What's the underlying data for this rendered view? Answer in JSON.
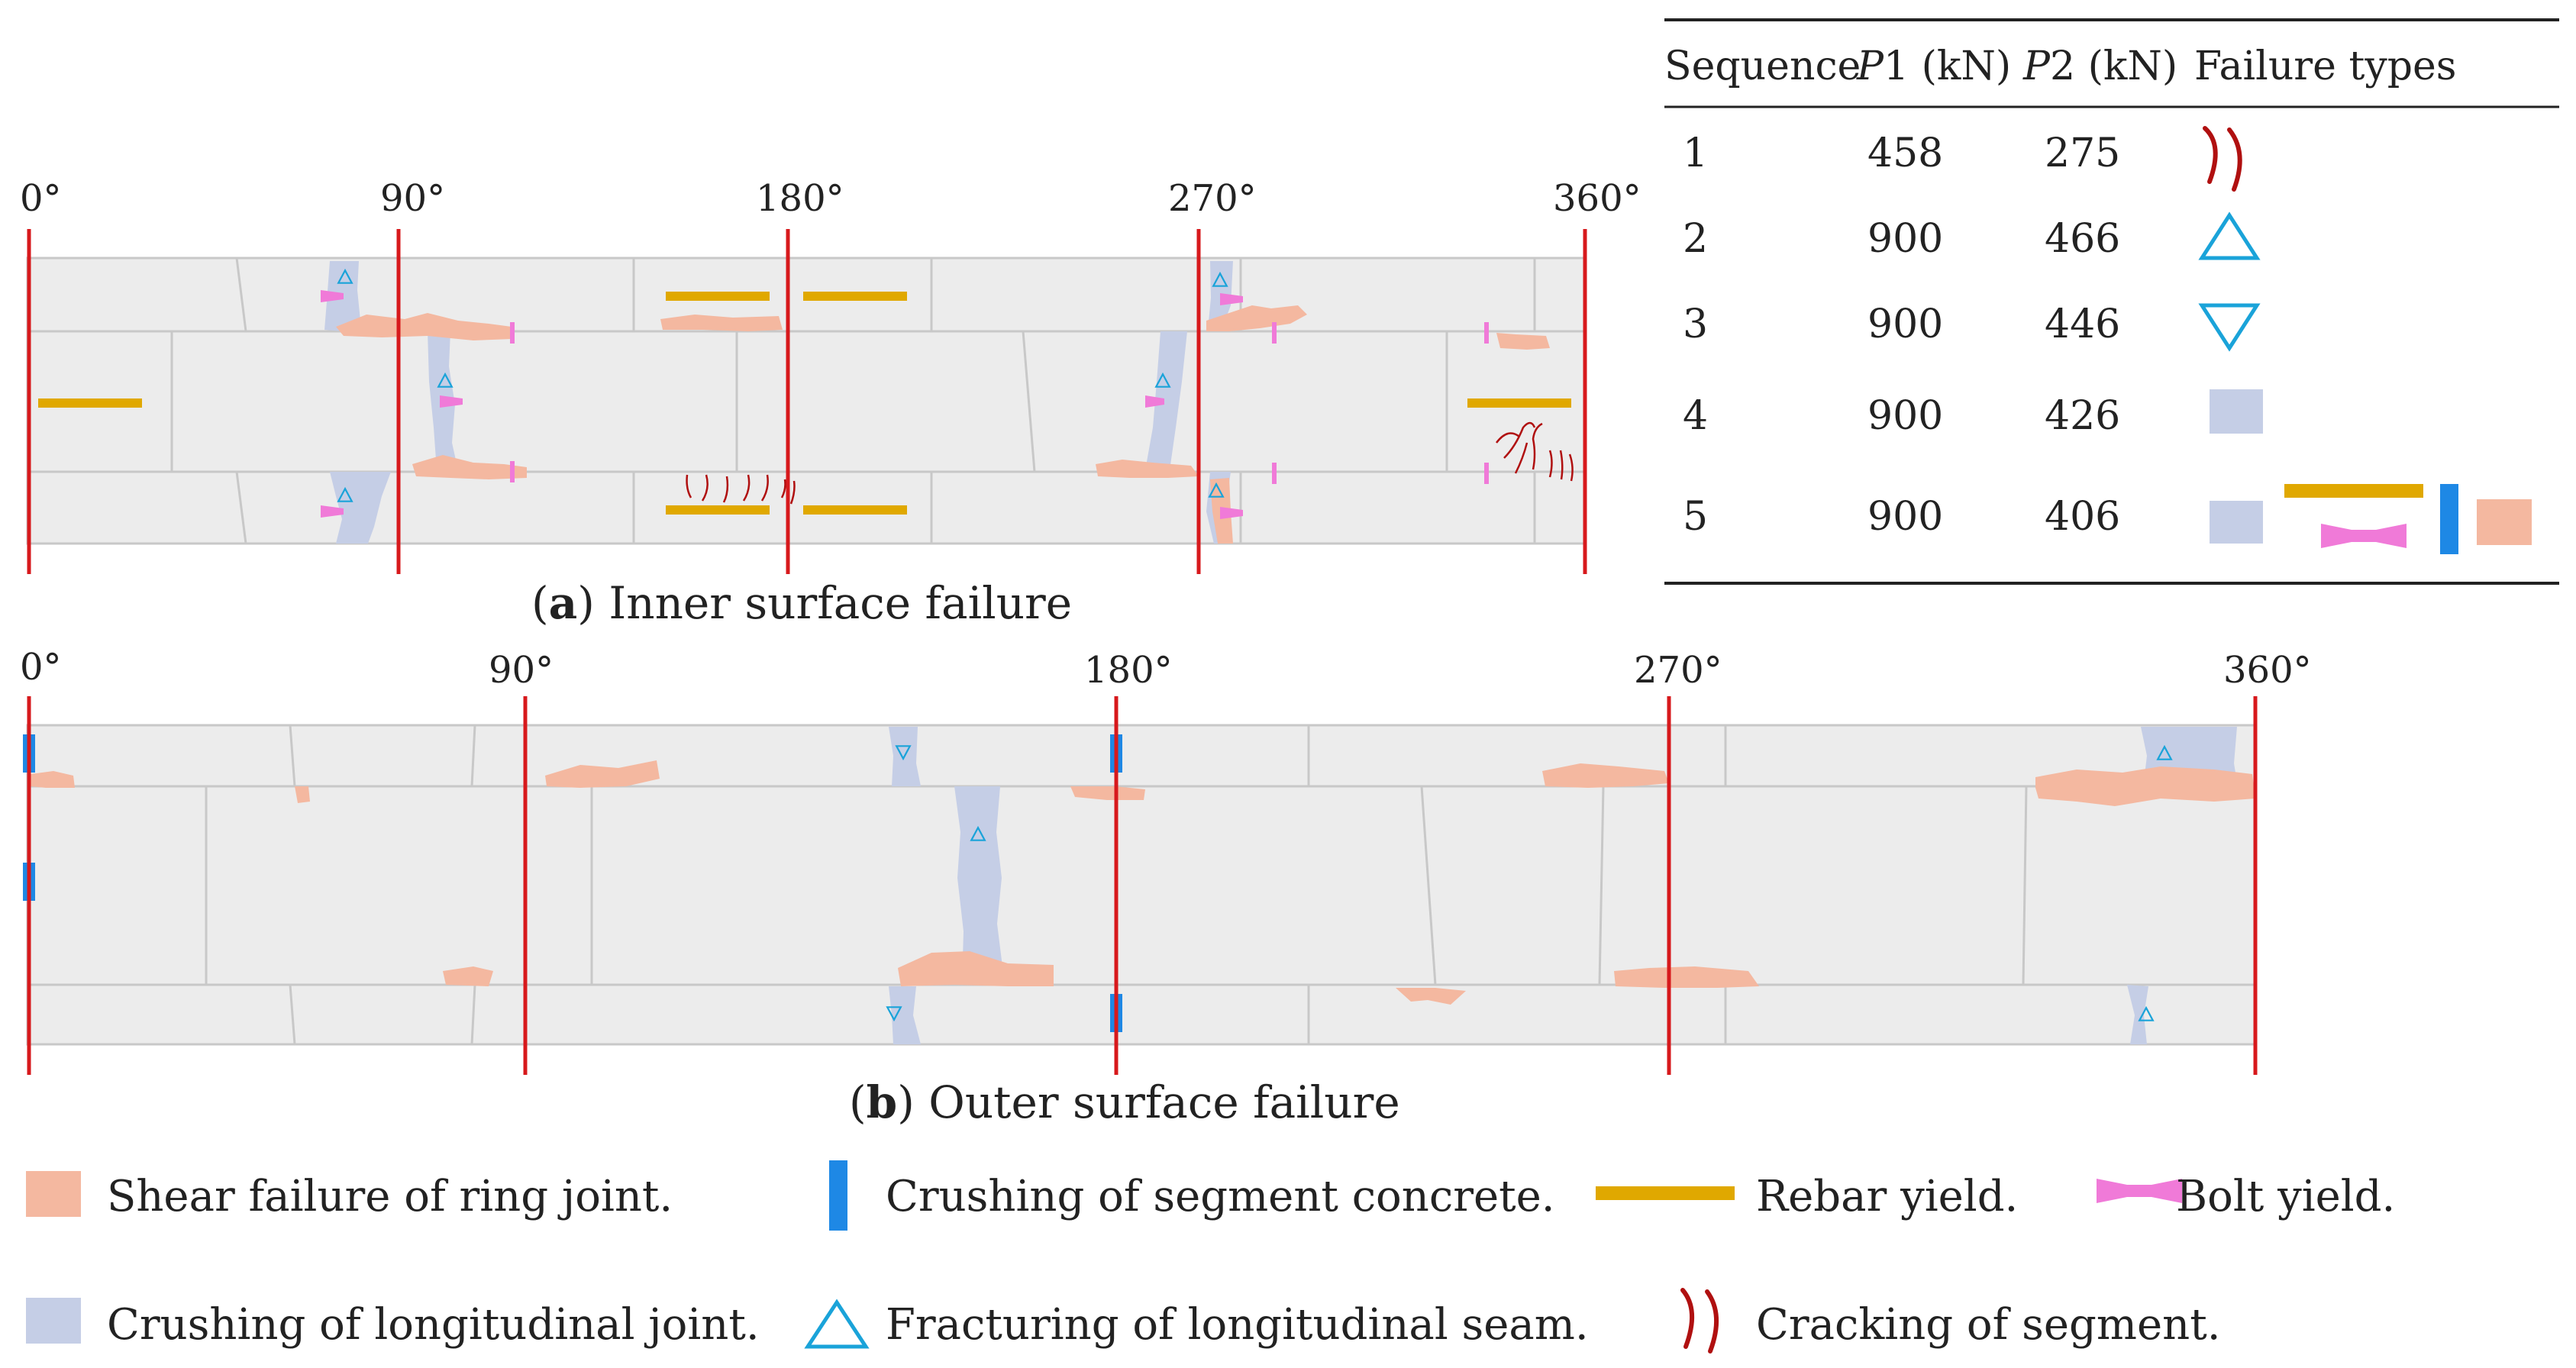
{
  "panel_a": {
    "caption_letter": "a",
    "caption_text": "Inner surface failure",
    "angles": [
      "0°",
      "90°",
      "180°",
      "270°",
      "360°"
    ]
  },
  "panel_b": {
    "caption_letter": "b",
    "caption_text": "Outer surface failure",
    "angles": [
      "0°",
      "90°",
      "180°",
      "270°",
      "360°"
    ]
  },
  "table": {
    "headers": {
      "sequence": "Sequence",
      "p1_sym": "P",
      "p1_unit": "1 (kN)",
      "p2_sym": "P",
      "p2_unit": "2 (kN)",
      "failure": "Failure types"
    },
    "rows": [
      {
        "seq": "1",
        "p1": "458",
        "p2": "275"
      },
      {
        "seq": "2",
        "p1": "900",
        "p2": "466"
      },
      {
        "seq": "3",
        "p1": "900",
        "p2": "446"
      },
      {
        "seq": "4",
        "p1": "900",
        "p2": "426"
      },
      {
        "seq": "5",
        "p1": "900",
        "p2": "406"
      }
    ]
  },
  "legend": {
    "shear_ring": "Shear failure of ring joint.",
    "crush_concrete": "Crushing of segment concrete.",
    "rebar": "Rebar yield.",
    "bolt": "Bolt yield.",
    "crush_long": "Crushing of longitudinal joint.",
    "fracture_seam": "Fracturing of longitudinal seam.",
    "crack": "Cracking of segment."
  },
  "colors": {
    "segment_fill": "#ececec",
    "segment_line": "#c8c8c8",
    "axis_red": "#d7191c",
    "shear_orange": "#f4b8a0",
    "crush_blue": "#c5cee6",
    "concrete_blue": "#1e88e5",
    "rebar_gold": "#e0a800",
    "bolt_pink": "#f07ad8",
    "seam_cyan": "#1aa3d9",
    "crack_red": "#b01010"
  }
}
